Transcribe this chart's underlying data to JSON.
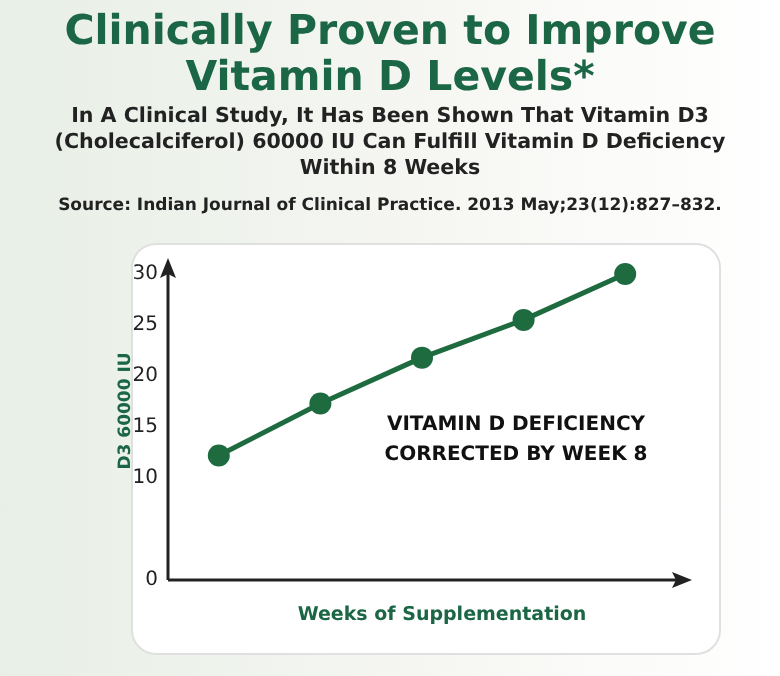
{
  "chart_data": {
    "type": "line",
    "title": "Clinically Proven to Improve Vitamin D Levels*",
    "subtitle": "In A Clinical Study, It Has Been Shown That Vitamin D3 (Cholecalciferol) 60000 IU Can Fulfill Vitamin D Deficiency Within 8 Weeks",
    "annotations": [
      "Source: Indian Journal of Clinical Practice. 2013 May;23(12):827–832.",
      "VITAMIN D DEFICIENCY\nCORRECTED BY WEEK 8"
    ],
    "xlabel": "Weeks of Supplementation",
    "ylabel": "D3 60000 IU",
    "categories": [
      null,
      null,
      null,
      null,
      null
    ],
    "series": [
      {
        "color": "#1d6b3f",
        "values": [
          12.2,
          17.3,
          21.8,
          25.5,
          30
        ]
      }
    ],
    "ylim": [
      0,
      30
    ],
    "yticks": [
      0,
      10,
      15,
      20,
      25,
      30
    ],
    "marker": "circle",
    "line_style": "solid"
  }
}
